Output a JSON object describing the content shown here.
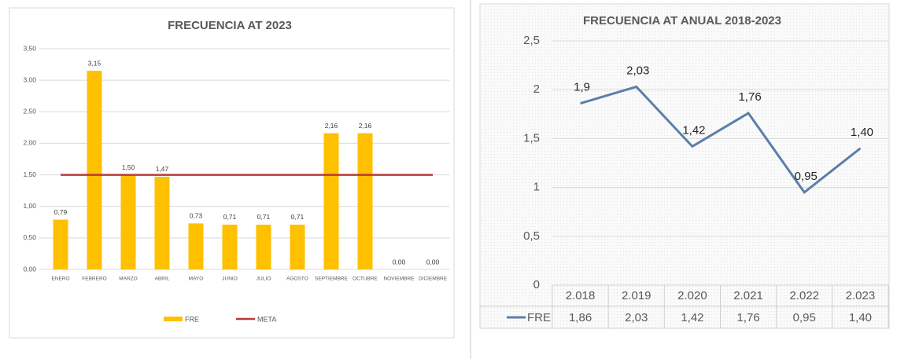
{
  "chart_data": [
    {
      "type": "bar",
      "title": "FRECUENCIA  AT 2023",
      "categories": [
        "ENERO",
        "FEBRERO",
        "MARZO",
        "ABRIL",
        "MAYO",
        "JUNIO",
        "JULIO",
        "AGOSTO",
        "SEPTIEMBRE",
        "OCTUBRE",
        "NOVIEMBRE",
        "DICIEMBRE"
      ],
      "series": [
        {
          "name": "FRE",
          "color": "#ffc000",
          "values": [
            0.79,
            3.15,
            1.5,
            1.47,
            0.73,
            0.71,
            0.71,
            0.71,
            2.16,
            2.16,
            0.0,
            0.0
          ],
          "value_labels": [
            "0,79",
            "3,15",
            "1,50",
            "1,47",
            "0,73",
            "0,71",
            "0,71",
            "0,71",
            "2,16",
            "2,16",
            "0,00",
            "0,00"
          ]
        },
        {
          "name": "META",
          "type": "line",
          "color": "#b83a3a",
          "values": [
            1.5,
            1.5,
            1.5,
            1.5,
            1.5,
            1.5,
            1.5,
            1.5,
            1.5,
            1.5,
            1.5,
            1.5
          ]
        }
      ],
      "ylim": [
        0,
        3.5
      ],
      "yticks": [
        {
          "value": 0,
          "label": "0,00"
        },
        {
          "value": 0.5,
          "label": "0,50"
        },
        {
          "value": 1,
          "label": "1,00"
        },
        {
          "value": 1.5,
          "label": "1,50"
        },
        {
          "value": 2,
          "label": "2,00"
        },
        {
          "value": 2.5,
          "label": "2,50"
        },
        {
          "value": 3,
          "label": "3,00"
        },
        {
          "value": 3.5,
          "label": "3,50"
        }
      ],
      "grid": true,
      "legend": "bottom"
    },
    {
      "type": "line",
      "title": "FRECUENCIA AT ANUAL 2018-2023",
      "categories": [
        "2.018",
        "2.019",
        "2.020",
        "2.021",
        "2.022",
        "2.023"
      ],
      "series": [
        {
          "name": "FRE",
          "color": "#5b7fa8",
          "values": [
            1.86,
            2.03,
            1.42,
            1.76,
            0.95,
            1.4
          ],
          "value_labels": [
            "1,9",
            "2,03",
            "1,42",
            "1,76",
            "0,95",
            "1,40"
          ],
          "table_labels": [
            "1,86",
            "2,03",
            "1,42",
            "1,76",
            "0,95",
            "1,40"
          ]
        }
      ],
      "ylim": [
        0,
        2.5
      ],
      "yticks": [
        0,
        {
          "value": 0.5,
          "label": "0,5"
        },
        1,
        {
          "value": 1.5,
          "label": "1,5"
        },
        2,
        {
          "value": 2.5,
          "label": "2,5"
        }
      ],
      "grid": true,
      "legend": "data-table"
    }
  ]
}
